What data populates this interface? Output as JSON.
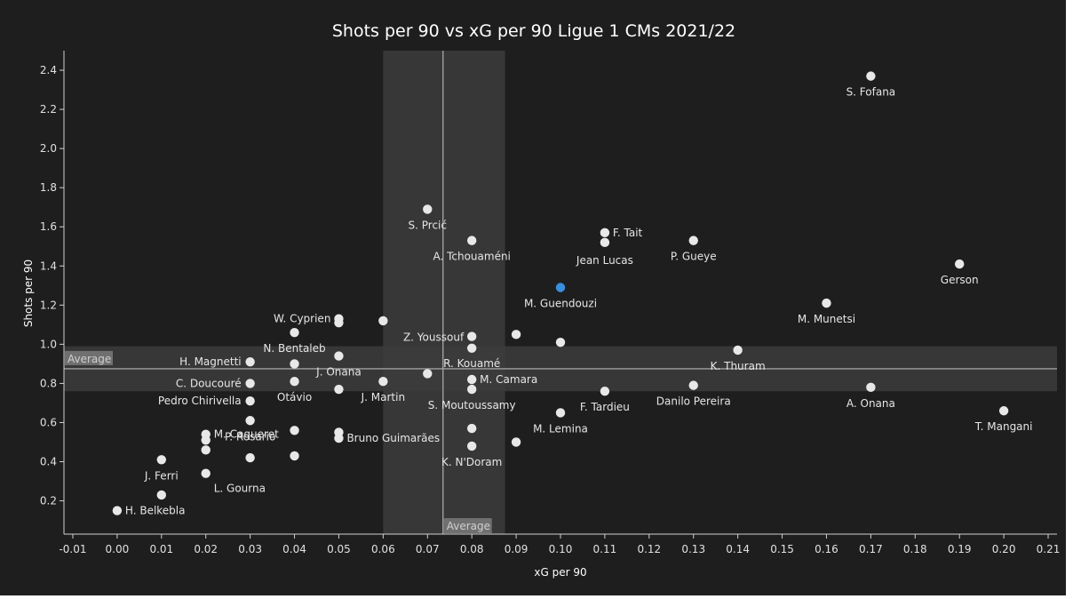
{
  "chart_data": {
    "type": "scatter",
    "title": "Shots per 90 vs xG per 90 Ligue 1 CMs 2021/22",
    "xlabel": "xG per 90",
    "ylabel": "Shots per 90",
    "xlim": [
      -0.012,
      0.212
    ],
    "ylim": [
      0.03,
      2.5
    ],
    "x_ticks": [
      -0.01,
      0.0,
      0.01,
      0.02,
      0.03,
      0.04,
      0.05,
      0.06,
      0.07,
      0.08,
      0.09,
      0.1,
      0.11,
      0.12,
      0.13,
      0.14,
      0.15,
      0.16,
      0.17,
      0.18,
      0.19,
      0.2,
      0.21
    ],
    "x_tick_labels": [
      "-0.01",
      "0.00",
      "0.01",
      "0.02",
      "0.03",
      "0.04",
      "0.05",
      "0.06",
      "0.07",
      "0.08",
      "0.09",
      "0.10",
      "0.11",
      "0.12",
      "0.13",
      "0.14",
      "0.15",
      "0.16",
      "0.17",
      "0.18",
      "0.19",
      "0.20",
      "0.21"
    ],
    "y_ticks": [
      0.2,
      0.4,
      0.6,
      0.8,
      1.0,
      1.2,
      1.4,
      1.6,
      1.8,
      2.0,
      2.2,
      2.4
    ],
    "y_tick_labels": [
      "0.2",
      "0.4",
      "0.6",
      "0.8",
      "1.0",
      "1.2",
      "1.4",
      "1.6",
      "1.8",
      "2.0",
      "2.2",
      "2.4"
    ],
    "grid": false,
    "average": {
      "x": 0.0735,
      "y": 0.875,
      "x_band": [
        0.06,
        0.0875
      ],
      "y_band": [
        0.76,
        0.99
      ],
      "label": "Average"
    },
    "colors": {
      "background": "#1e1e1e",
      "point": "#e8e8e8",
      "highlight": "#3a8fdc",
      "band": "#3c3c3c",
      "avg_line": "#a0a0a0"
    },
    "points": [
      {
        "name": "S. Fofana",
        "x": 0.17,
        "y": 2.37
      },
      {
        "name": "S. Prcić",
        "x": 0.07,
        "y": 1.69
      },
      {
        "name": "F. Tait",
        "x": 0.11,
        "y": 1.57
      },
      {
        "name": "Jean Lucas",
        "x": 0.11,
        "y": 1.52
      },
      {
        "name": "P. Gueye",
        "x": 0.13,
        "y": 1.53
      },
      {
        "name": "A. Tchouaméni",
        "x": 0.08,
        "y": 1.53
      },
      {
        "name": "Gerson",
        "x": 0.19,
        "y": 1.41
      },
      {
        "name": "M. Guendouzi",
        "x": 0.1,
        "y": 1.29,
        "highlight": true
      },
      {
        "name": "M. Munetsi",
        "x": 0.16,
        "y": 1.21
      },
      {
        "name": "W. Cyprien",
        "x": 0.05,
        "y": 1.13
      },
      {
        "name": "",
        "x": 0.05,
        "y": 1.11
      },
      {
        "name": "",
        "x": 0.06,
        "y": 1.12
      },
      {
        "name": "N. Bentaleb",
        "x": 0.04,
        "y": 1.06
      },
      {
        "name": "Z. Youssouf",
        "x": 0.08,
        "y": 1.04
      },
      {
        "name": "",
        "x": 0.09,
        "y": 1.05
      },
      {
        "name": "",
        "x": 0.1,
        "y": 1.01
      },
      {
        "name": "R. Kouamé",
        "x": 0.08,
        "y": 0.98
      },
      {
        "name": "K. Thuram",
        "x": 0.14,
        "y": 0.97
      },
      {
        "name": "J. Onana",
        "x": 0.05,
        "y": 0.94
      },
      {
        "name": "H. Magnetti",
        "x": 0.03,
        "y": 0.91
      },
      {
        "name": "",
        "x": 0.04,
        "y": 0.9
      },
      {
        "name": "",
        "x": 0.07,
        "y": 0.85
      },
      {
        "name": "M. Camara",
        "x": 0.08,
        "y": 0.82
      },
      {
        "name": "J. Martin",
        "x": 0.06,
        "y": 0.81
      },
      {
        "name": "C. Doucouré",
        "x": 0.03,
        "y": 0.8
      },
      {
        "name": "Otávio",
        "x": 0.04,
        "y": 0.81
      },
      {
        "name": "Danilo Pereira",
        "x": 0.13,
        "y": 0.79
      },
      {
        "name": "S. Moutoussamy",
        "x": 0.08,
        "y": 0.77
      },
      {
        "name": "",
        "x": 0.05,
        "y": 0.77
      },
      {
        "name": "A. Onana",
        "x": 0.17,
        "y": 0.78
      },
      {
        "name": "F. Tardieu",
        "x": 0.11,
        "y": 0.76
      },
      {
        "name": "Pedro Chirivella",
        "x": 0.03,
        "y": 0.71
      },
      {
        "name": "T. Mangani",
        "x": 0.2,
        "y": 0.66
      },
      {
        "name": "M. Lemina",
        "x": 0.1,
        "y": 0.65
      },
      {
        "name": "P. Rosario",
        "x": 0.03,
        "y": 0.61
      },
      {
        "name": "",
        "x": 0.04,
        "y": 0.56
      },
      {
        "name": "",
        "x": 0.05,
        "y": 0.55
      },
      {
        "name": "Bruno Guimarães",
        "x": 0.05,
        "y": 0.52
      },
      {
        "name": "",
        "x": 0.08,
        "y": 0.57
      },
      {
        "name": "M. Caqueret",
        "x": 0.02,
        "y": 0.54
      },
      {
        "name": "",
        "x": 0.02,
        "y": 0.51
      },
      {
        "name": "",
        "x": 0.02,
        "y": 0.46
      },
      {
        "name": "",
        "x": 0.09,
        "y": 0.5
      },
      {
        "name": "K. N'Doram",
        "x": 0.08,
        "y": 0.48
      },
      {
        "name": "",
        "x": 0.03,
        "y": 0.42
      },
      {
        "name": "",
        "x": 0.04,
        "y": 0.43
      },
      {
        "name": "J. Ferri",
        "x": 0.01,
        "y": 0.41
      },
      {
        "name": "L. Gourna",
        "x": 0.02,
        "y": 0.34
      },
      {
        "name": "",
        "x": 0.01,
        "y": 0.23
      },
      {
        "name": "H. Belkebla",
        "x": 0.0,
        "y": 0.15
      }
    ]
  }
}
